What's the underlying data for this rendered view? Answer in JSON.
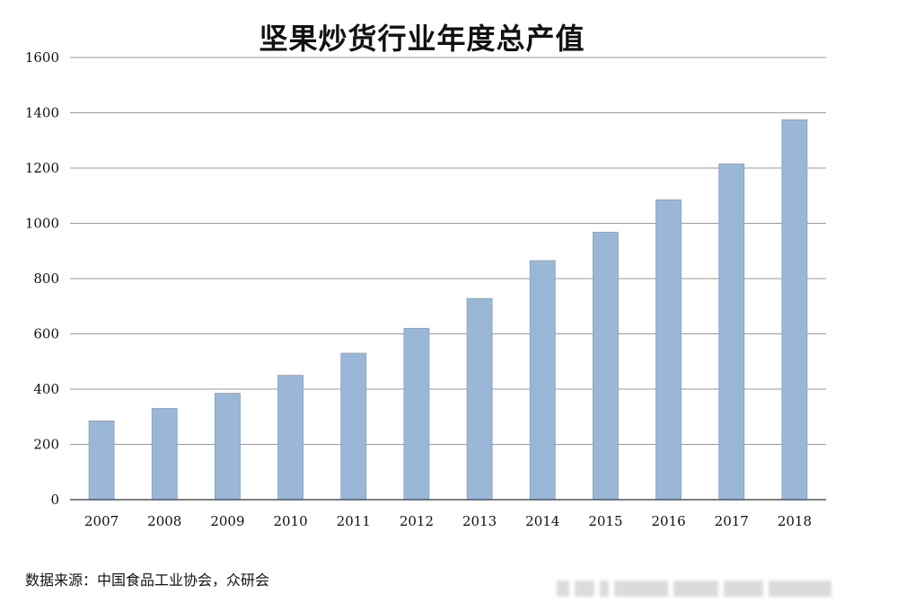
{
  "chart_data": {
    "type": "bar",
    "title": "坚果炒货行业年度总产值",
    "categories": [
      "2007",
      "2008",
      "2009",
      "2010",
      "2011",
      "2012",
      "2013",
      "2014",
      "2015",
      "2016",
      "2017",
      "2018"
    ],
    "values": [
      285,
      330,
      385,
      450,
      530,
      620,
      728,
      865,
      968,
      1085,
      1215,
      1375
    ],
    "xlabel": "",
    "ylabel": "",
    "ylim": [
      0,
      1600
    ],
    "yticks": [
      0,
      200,
      400,
      600,
      800,
      1000,
      1200,
      1400,
      1600
    ],
    "grid": true,
    "legend": "none",
    "bar_color": "#9bb7d7",
    "bar_edge_color": "#7f9fc4",
    "grid_color": "#9a9a9a"
  },
  "source_note": "数据来源：中国食品工业协会，众研会"
}
